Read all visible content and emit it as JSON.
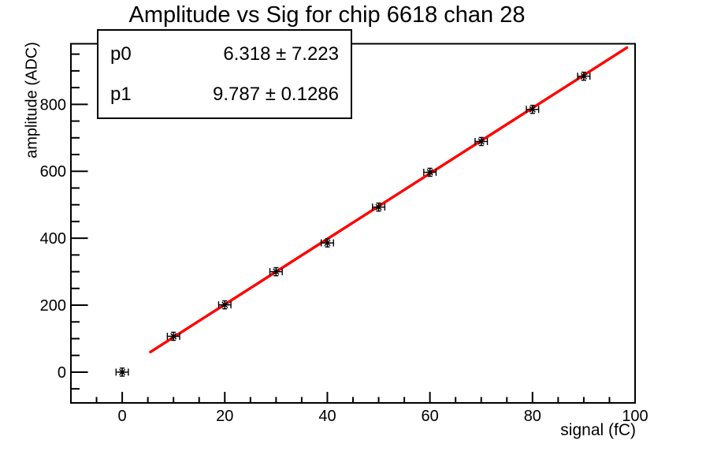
{
  "title": "Amplitude vs Sig for chip 6618 chan 28",
  "stats_box": {
    "rows": [
      {
        "label": "p0",
        "value": "6.318 ± 7.223"
      },
      {
        "label": "p1",
        "value": "9.787 ± 0.1286"
      }
    ]
  },
  "chart_data": {
    "type": "scatter",
    "title": "Amplitude vs Sig for chip 6618 chan 28",
    "xlabel": "signal (fC)",
    "ylabel": "amplitude (ADC)",
    "xlim": [
      -10,
      100
    ],
    "ylim": [
      -92,
      981
    ],
    "grid": false,
    "legend": "none",
    "x_ticks": {
      "major": [
        0,
        20,
        40,
        60,
        80,
        100
      ],
      "minor_step": 5
    },
    "y_ticks": {
      "major": [
        0,
        200,
        400,
        600,
        800
      ],
      "minor_step": 50
    },
    "points": {
      "x": [
        0,
        10,
        20,
        30,
        40,
        50,
        60,
        70,
        80,
        90
      ],
      "y": [
        0,
        107,
        201,
        300,
        386,
        493,
        597,
        689,
        785,
        884
      ],
      "x_err": 1.2,
      "y_err": 12,
      "marker": "asterisk",
      "color": "#000000"
    },
    "fit": {
      "label": "pol1",
      "p0": 6.318,
      "p1": 9.787,
      "x_range": [
        5.5,
        98.4
      ],
      "color": "#ff0000",
      "line_width": 3.4
    },
    "frame_color": "#000000",
    "background": "#ffffff"
  }
}
